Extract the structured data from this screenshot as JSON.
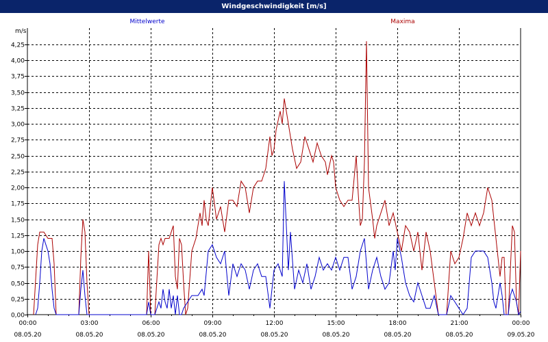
{
  "window": {
    "title": "Windgeschwindigkeit [m/s]"
  },
  "legend": {
    "left": "Mittelwerte",
    "right": "Maxima"
  },
  "colors": {
    "mean": "#0000cc",
    "max": "#aa0000",
    "grid": "#000000",
    "titlebar": "#0a246a"
  },
  "chart_data": {
    "type": "line",
    "ylabel": "m/s",
    "ylim": [
      0,
      4.4
    ],
    "yticks": [
      "0,00",
      "0,25",
      "0,50",
      "0,75",
      "1,00",
      "1,25",
      "1,50",
      "1,75",
      "2,00",
      "2,25",
      "2,50",
      "2,75",
      "3,00",
      "3,25",
      "3,50",
      "3,75",
      "4,00",
      "4,25"
    ],
    "yvalues": [
      0,
      0.25,
      0.5,
      0.75,
      1,
      1.25,
      1.5,
      1.75,
      2,
      2.25,
      2.5,
      2.75,
      3,
      3.25,
      3.5,
      3.75,
      4,
      4.25
    ],
    "xlim": [
      0,
      24
    ],
    "xticks": [
      {
        "h": 0,
        "time": "00:00",
        "date": "08.05.20"
      },
      {
        "h": 3,
        "time": "03:00",
        "date": "08.05.20"
      },
      {
        "h": 6,
        "time": "06:00",
        "date": "08.05.20"
      },
      {
        "h": 9,
        "time": "09:00",
        "date": "08.05.20"
      },
      {
        "h": 12,
        "time": "12:00",
        "date": "08.05.20"
      },
      {
        "h": 15,
        "time": "15:00",
        "date": "08.05.20"
      },
      {
        "h": 18,
        "time": "18:00",
        "date": "08.05.20"
      },
      {
        "h": 21,
        "time": "21:00",
        "date": "08.05.20"
      },
      {
        "h": 24,
        "time": "00:00",
        "date": "09.05.20"
      }
    ],
    "grid": true,
    "series": [
      {
        "name": "Mittelwerte",
        "color": "#0000cc",
        "points": [
          [
            0.4,
            0
          ],
          [
            0.5,
            0.1
          ],
          [
            0.6,
            0.5
          ],
          [
            0.7,
            1.0
          ],
          [
            0.8,
            1.2
          ],
          [
            0.9,
            1.1
          ],
          [
            1.0,
            1.0
          ],
          [
            1.1,
            0.8
          ],
          [
            1.2,
            0.4
          ],
          [
            1.3,
            0.1
          ],
          [
            1.4,
            0
          ],
          [
            2.5,
            0
          ],
          [
            2.6,
            0.4
          ],
          [
            2.7,
            0.7
          ],
          [
            2.8,
            0.3
          ],
          [
            2.9,
            0
          ],
          [
            5.8,
            0
          ],
          [
            5.9,
            0.2
          ],
          [
            6.0,
            0
          ],
          [
            6.2,
            0
          ],
          [
            6.4,
            0.2
          ],
          [
            6.5,
            0.1
          ],
          [
            6.6,
            0.4
          ],
          [
            6.7,
            0.2
          ],
          [
            6.8,
            0.1
          ],
          [
            6.9,
            0.4
          ],
          [
            7.0,
            0.1
          ],
          [
            7.1,
            0.3
          ],
          [
            7.2,
            0
          ],
          [
            7.3,
            0.3
          ],
          [
            7.4,
            0
          ],
          [
            7.5,
            0
          ],
          [
            7.6,
            0.1
          ],
          [
            7.8,
            0.2
          ],
          [
            8.0,
            0.3
          ],
          [
            8.3,
            0.3
          ],
          [
            8.5,
            0.4
          ],
          [
            8.6,
            0.3
          ],
          [
            8.8,
            1.0
          ],
          [
            9.0,
            1.1
          ],
          [
            9.2,
            0.9
          ],
          [
            9.4,
            0.8
          ],
          [
            9.6,
            1.0
          ],
          [
            9.8,
            0.3
          ],
          [
            10.0,
            0.8
          ],
          [
            10.2,
            0.6
          ],
          [
            10.4,
            0.8
          ],
          [
            10.6,
            0.7
          ],
          [
            10.8,
            0.4
          ],
          [
            11.0,
            0.7
          ],
          [
            11.2,
            0.8
          ],
          [
            11.4,
            0.6
          ],
          [
            11.6,
            0.6
          ],
          [
            11.8,
            0.1
          ],
          [
            12.0,
            0.7
          ],
          [
            12.2,
            0.8
          ],
          [
            12.4,
            0.6
          ],
          [
            12.5,
            2.1
          ],
          [
            12.7,
            0.7
          ],
          [
            12.8,
            1.3
          ],
          [
            13.0,
            0.4
          ],
          [
            13.2,
            0.7
          ],
          [
            13.4,
            0.5
          ],
          [
            13.6,
            0.8
          ],
          [
            13.8,
            0.4
          ],
          [
            14.0,
            0.6
          ],
          [
            14.2,
            0.9
          ],
          [
            14.4,
            0.7
          ],
          [
            14.6,
            0.8
          ],
          [
            14.8,
            0.7
          ],
          [
            15.0,
            0.9
          ],
          [
            15.2,
            0.7
          ],
          [
            15.4,
            0.9
          ],
          [
            15.6,
            0.9
          ],
          [
            15.8,
            0.4
          ],
          [
            16.0,
            0.6
          ],
          [
            16.2,
            1.0
          ],
          [
            16.4,
            1.2
          ],
          [
            16.6,
            0.4
          ],
          [
            16.8,
            0.7
          ],
          [
            17.0,
            0.9
          ],
          [
            17.2,
            0.6
          ],
          [
            17.4,
            0.4
          ],
          [
            17.6,
            0.5
          ],
          [
            17.8,
            1.0
          ],
          [
            17.9,
            0.7
          ],
          [
            18.0,
            1.2
          ],
          [
            18.2,
            0.9
          ],
          [
            18.4,
            0.5
          ],
          [
            18.6,
            0.3
          ],
          [
            18.8,
            0.2
          ],
          [
            19.0,
            0.5
          ],
          [
            19.2,
            0.3
          ],
          [
            19.4,
            0.1
          ],
          [
            19.6,
            0.1
          ],
          [
            19.8,
            0.3
          ],
          [
            20.0,
            0
          ],
          [
            20.4,
            0
          ],
          [
            20.6,
            0.3
          ],
          [
            20.8,
            0.2
          ],
          [
            21.0,
            0.1
          ],
          [
            21.2,
            0
          ],
          [
            21.4,
            0.1
          ],
          [
            21.6,
            0.9
          ],
          [
            21.8,
            1.0
          ],
          [
            22.0,
            1.0
          ],
          [
            22.2,
            1.0
          ],
          [
            22.4,
            0.9
          ],
          [
            22.6,
            0.5
          ],
          [
            22.7,
            0.2
          ],
          [
            22.8,
            0.1
          ],
          [
            22.9,
            0.3
          ],
          [
            23.0,
            0.5
          ],
          [
            23.1,
            0.3
          ],
          [
            23.2,
            0
          ],
          [
            23.4,
            0
          ],
          [
            23.5,
            0.3
          ],
          [
            23.6,
            0.4
          ],
          [
            23.7,
            0.3
          ],
          [
            23.8,
            0.2
          ],
          [
            23.9,
            0
          ],
          [
            24.0,
            0.05
          ]
        ]
      },
      {
        "name": "Maxima",
        "color": "#aa0000",
        "points": [
          [
            0.3,
            0
          ],
          [
            0.5,
            1.1
          ],
          [
            0.6,
            1.3
          ],
          [
            0.8,
            1.3
          ],
          [
            1.0,
            1.2
          ],
          [
            1.2,
            1.2
          ],
          [
            1.3,
            0.8
          ],
          [
            1.4,
            0
          ],
          [
            2.5,
            0
          ],
          [
            2.6,
            0.9
          ],
          [
            2.7,
            1.5
          ],
          [
            2.8,
            1.3
          ],
          [
            2.9,
            0.5
          ],
          [
            3.0,
            0
          ],
          [
            5.8,
            0
          ],
          [
            5.9,
            1.0
          ],
          [
            6.0,
            0
          ],
          [
            6.2,
            0
          ],
          [
            6.4,
            1.1
          ],
          [
            6.5,
            1.2
          ],
          [
            6.6,
            1.1
          ],
          [
            6.7,
            1.2
          ],
          [
            6.9,
            1.2
          ],
          [
            7.0,
            1.3
          ],
          [
            7.1,
            1.4
          ],
          [
            7.2,
            0.6
          ],
          [
            7.3,
            0.4
          ],
          [
            7.4,
            1.2
          ],
          [
            7.5,
            1.1
          ],
          [
            7.6,
            0.5
          ],
          [
            7.7,
            0
          ],
          [
            7.8,
            0.1
          ],
          [
            8.0,
            1.0
          ],
          [
            8.2,
            1.2
          ],
          [
            8.4,
            1.6
          ],
          [
            8.5,
            1.4
          ],
          [
            8.6,
            1.8
          ],
          [
            8.7,
            1.5
          ],
          [
            8.8,
            1.4
          ],
          [
            9.0,
            2.0
          ],
          [
            9.2,
            1.5
          ],
          [
            9.4,
            1.7
          ],
          [
            9.6,
            1.3
          ],
          [
            9.8,
            1.8
          ],
          [
            10.0,
            1.8
          ],
          [
            10.2,
            1.7
          ],
          [
            10.4,
            2.1
          ],
          [
            10.6,
            2.0
          ],
          [
            10.8,
            1.6
          ],
          [
            11.0,
            2.0
          ],
          [
            11.2,
            2.1
          ],
          [
            11.4,
            2.1
          ],
          [
            11.6,
            2.3
          ],
          [
            11.8,
            2.8
          ],
          [
            11.9,
            2.5
          ],
          [
            12.0,
            2.6
          ],
          [
            12.1,
            2.9
          ],
          [
            12.3,
            3.2
          ],
          [
            12.4,
            3.0
          ],
          [
            12.5,
            3.4
          ],
          [
            12.7,
            3.0
          ],
          [
            12.8,
            2.8
          ],
          [
            12.9,
            2.6
          ],
          [
            13.1,
            2.3
          ],
          [
            13.3,
            2.4
          ],
          [
            13.5,
            2.8
          ],
          [
            13.7,
            2.6
          ],
          [
            13.9,
            2.4
          ],
          [
            14.1,
            2.7
          ],
          [
            14.3,
            2.5
          ],
          [
            14.5,
            2.4
          ],
          [
            14.6,
            2.2
          ],
          [
            14.8,
            2.5
          ],
          [
            14.9,
            2.4
          ],
          [
            15.0,
            2.0
          ],
          [
            15.2,
            1.8
          ],
          [
            15.4,
            1.7
          ],
          [
            15.6,
            1.8
          ],
          [
            15.8,
            1.8
          ],
          [
            16.0,
            2.5
          ],
          [
            16.1,
            1.9
          ],
          [
            16.2,
            1.4
          ],
          [
            16.3,
            1.5
          ],
          [
            16.4,
            2.4
          ],
          [
            16.5,
            4.3
          ],
          [
            16.6,
            2.0
          ],
          [
            16.8,
            1.5
          ],
          [
            16.9,
            1.2
          ],
          [
            17.0,
            1.4
          ],
          [
            17.2,
            1.6
          ],
          [
            17.4,
            1.8
          ],
          [
            17.6,
            1.4
          ],
          [
            17.8,
            1.6
          ],
          [
            18.0,
            1.3
          ],
          [
            18.2,
            1.0
          ],
          [
            18.4,
            1.4
          ],
          [
            18.6,
            1.3
          ],
          [
            18.8,
            1.0
          ],
          [
            19.0,
            1.3
          ],
          [
            19.2,
            0.7
          ],
          [
            19.4,
            1.3
          ],
          [
            19.6,
            1.0
          ],
          [
            19.8,
            0.5
          ],
          [
            20.0,
            0
          ],
          [
            20.4,
            0
          ],
          [
            20.6,
            1.0
          ],
          [
            20.8,
            0.8
          ],
          [
            21.0,
            0.9
          ],
          [
            21.2,
            1.2
          ],
          [
            21.4,
            1.6
          ],
          [
            21.6,
            1.4
          ],
          [
            21.8,
            1.6
          ],
          [
            22.0,
            1.4
          ],
          [
            22.2,
            1.6
          ],
          [
            22.4,
            2.0
          ],
          [
            22.6,
            1.8
          ],
          [
            22.7,
            1.5
          ],
          [
            22.8,
            1.2
          ],
          [
            23.0,
            0.6
          ],
          [
            23.1,
            0.9
          ],
          [
            23.2,
            0.9
          ],
          [
            23.3,
            0
          ],
          [
            23.4,
            0
          ],
          [
            23.5,
            0.7
          ],
          [
            23.6,
            1.4
          ],
          [
            23.7,
            1.3
          ],
          [
            23.8,
            0.2
          ],
          [
            23.9,
            0
          ],
          [
            24.0,
            1.0
          ]
        ]
      }
    ]
  }
}
